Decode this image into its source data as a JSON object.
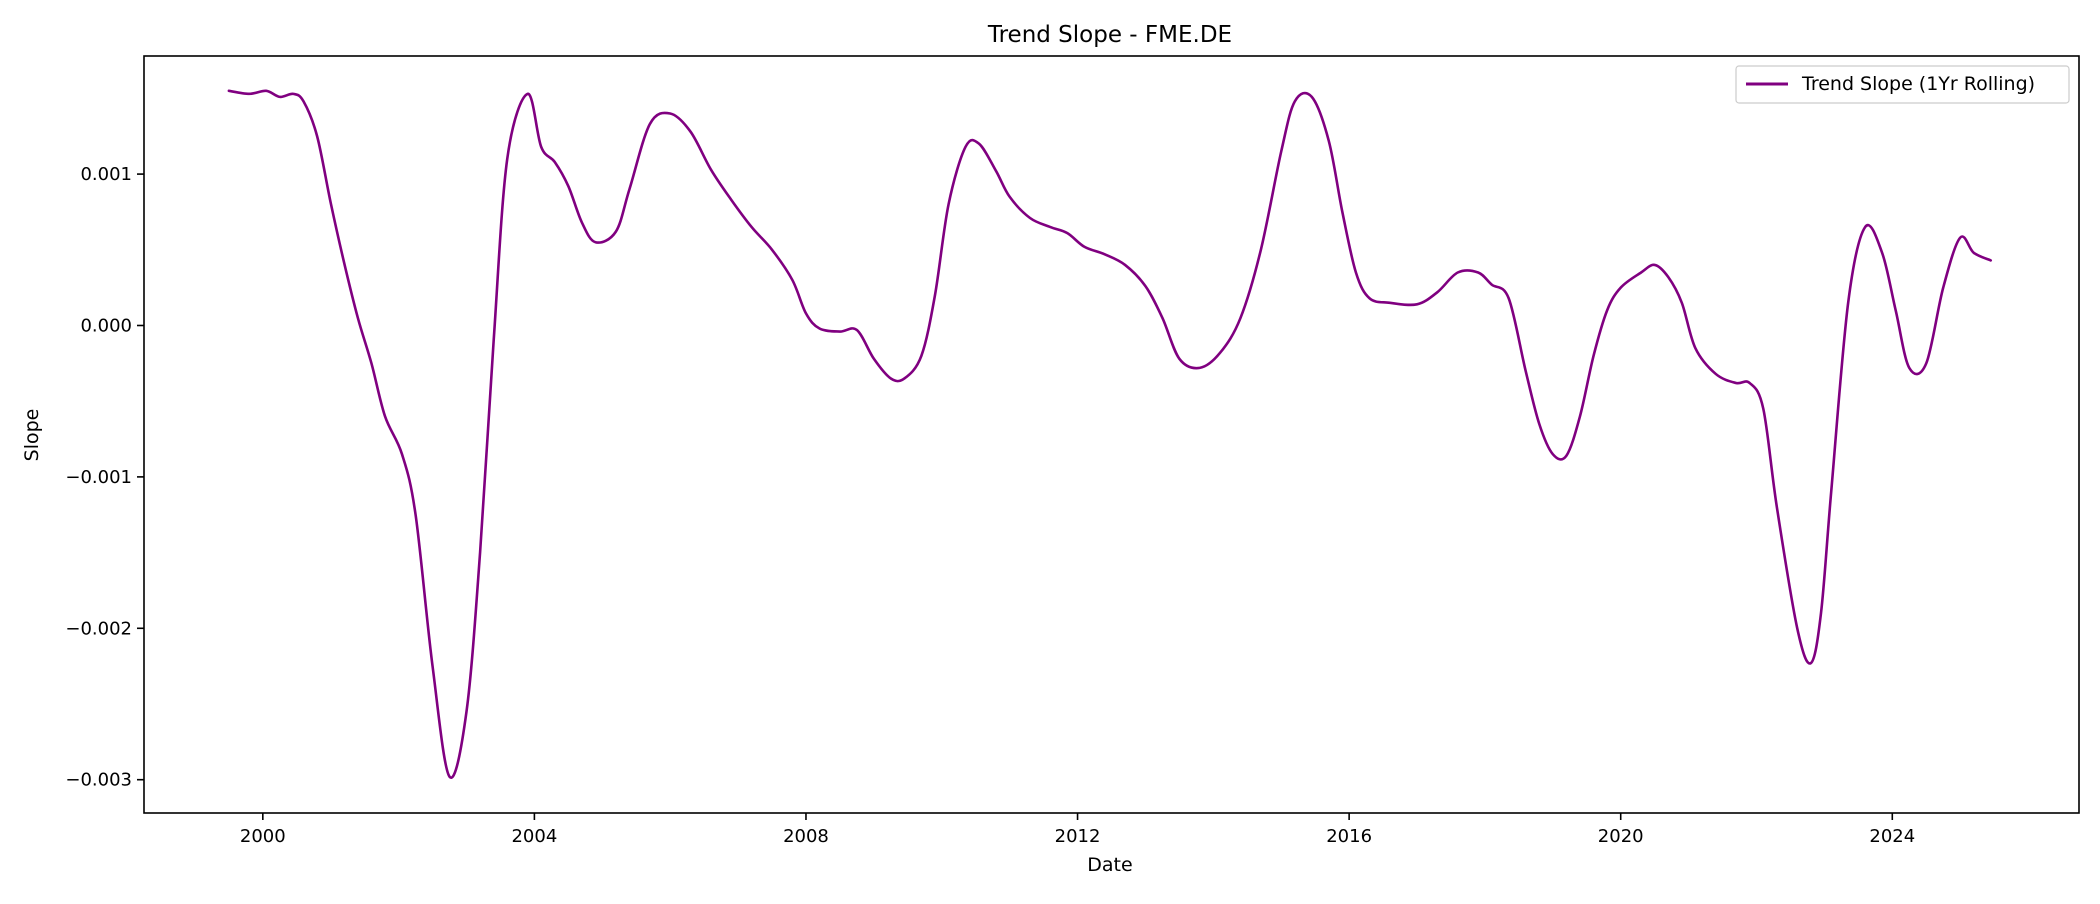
{
  "chart_data": {
    "type": "line",
    "title": "Trend Slope - FME.DE",
    "xlabel": "Date",
    "ylabel": "Slope",
    "xlim": [
      1998.25,
      2026.75
    ],
    "ylim": [
      -0.00322,
      0.00178
    ],
    "xticks": [
      {
        "value": 2000,
        "label": "2000"
      },
      {
        "value": 2004,
        "label": "2004"
      },
      {
        "value": 2008,
        "label": "2008"
      },
      {
        "value": 2012,
        "label": "2012"
      },
      {
        "value": 2016,
        "label": "2016"
      },
      {
        "value": 2020,
        "label": "2020"
      },
      {
        "value": 2024,
        "label": "2024"
      }
    ],
    "yticks": [
      {
        "value": 0.001,
        "label": "0.001"
      },
      {
        "value": 0.0,
        "label": "0.000"
      },
      {
        "value": -0.001,
        "label": "−0.001"
      },
      {
        "value": -0.002,
        "label": "−0.002"
      },
      {
        "value": -0.003,
        "label": "−0.003"
      }
    ],
    "grid": false,
    "legend_position": "top-right",
    "series": [
      {
        "name": "Trend Slope (1Yr Rolling)",
        "color": "#800080",
        "x": [
          1999.5,
          1999.8,
          2000.05,
          2000.25,
          2000.45,
          2000.6,
          2000.8,
          2001.0,
          2001.2,
          2001.4,
          2001.6,
          2001.8,
          2002.05,
          2002.25,
          2002.5,
          2002.75,
          2003.0,
          2003.2,
          2003.4,
          2003.6,
          2003.9,
          2004.1,
          2004.3,
          2004.5,
          2004.7,
          2004.9,
          2005.2,
          2005.4,
          2005.7,
          2006.0,
          2006.3,
          2006.6,
          2006.9,
          2007.2,
          2007.5,
          2007.8,
          2008.0,
          2008.2,
          2008.5,
          2008.75,
          2009.0,
          2009.25,
          2009.45,
          2009.7,
          2009.9,
          2010.1,
          2010.35,
          2010.55,
          2010.8,
          2011.0,
          2011.3,
          2011.6,
          2011.85,
          2012.1,
          2012.4,
          2012.7,
          2013.0,
          2013.25,
          2013.5,
          2013.8,
          2014.1,
          2014.4,
          2014.7,
          2015.0,
          2015.2,
          2015.45,
          2015.7,
          2015.9,
          2016.1,
          2016.3,
          2016.6,
          2017.0,
          2017.3,
          2017.6,
          2017.9,
          2018.1,
          2018.35,
          2018.6,
          2018.8,
          2019.0,
          2019.2,
          2019.4,
          2019.6,
          2019.8,
          2020.0,
          2020.3,
          2020.5,
          2020.7,
          2020.9,
          2021.1,
          2021.4,
          2021.7,
          2021.9,
          2022.1,
          2022.3,
          2022.6,
          2022.8,
          2022.95,
          2023.1,
          2023.35,
          2023.6,
          2023.85,
          2024.05,
          2024.25,
          2024.5,
          2024.75,
          2025.0,
          2025.2,
          2025.45
        ],
        "y": [
          0.00155,
          0.00153,
          0.00155,
          0.00151,
          0.00153,
          0.00148,
          0.00125,
          0.00081,
          0.00041,
          5e-05,
          -0.00025,
          -0.0006,
          -0.00085,
          -0.00125,
          -0.00225,
          -0.00298,
          -0.00255,
          -0.0015,
          -0.0001,
          0.0011,
          0.00153,
          0.00118,
          0.00108,
          0.00092,
          0.00068,
          0.00055,
          0.00062,
          0.0009,
          0.00133,
          0.0014,
          0.00128,
          0.00103,
          0.00083,
          0.00065,
          0.0005,
          0.0003,
          8e-05,
          -2e-05,
          -4e-05,
          -3e-05,
          -0.00022,
          -0.00035,
          -0.00035,
          -0.0002,
          0.0002,
          0.0008,
          0.00118,
          0.0012,
          0.00102,
          0.00085,
          0.00071,
          0.00065,
          0.00061,
          0.00052,
          0.00047,
          0.0004,
          0.00026,
          5e-05,
          -0.00022,
          -0.00028,
          -0.00018,
          5e-05,
          0.0005,
          0.00115,
          0.00148,
          0.00151,
          0.00122,
          0.00075,
          0.00035,
          0.00018,
          0.00015,
          0.00014,
          0.00022,
          0.00035,
          0.00035,
          0.00027,
          0.00018,
          -0.0003,
          -0.00065,
          -0.00085,
          -0.00086,
          -0.0006,
          -0.0002,
          0.0001,
          0.00025,
          0.00035,
          0.0004,
          0.00032,
          0.00015,
          -0.00015,
          -0.00032,
          -0.00038,
          -0.00038,
          -0.00055,
          -0.0012,
          -0.002,
          -0.00223,
          -0.0019,
          -0.0011,
          0.00015,
          0.00065,
          0.00048,
          0.0001,
          -0.00028,
          -0.00025,
          0.00025,
          0.00058,
          0.00048,
          0.00043
        ]
      }
    ]
  }
}
